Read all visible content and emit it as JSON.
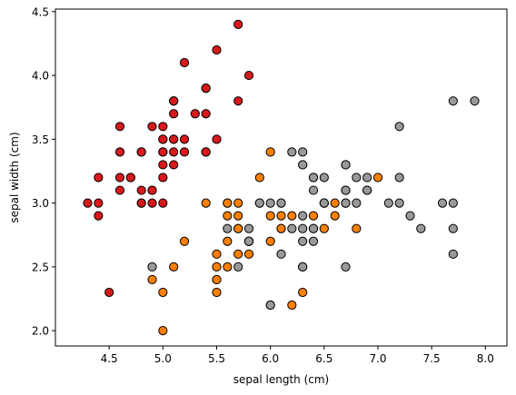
{
  "chart_data": {
    "type": "scatter",
    "title": "",
    "xlabel": "sepal length (cm)",
    "ylabel": "sepal width (cm)",
    "xlim": [
      4.0,
      8.2
    ],
    "ylim": [
      1.88,
      4.52
    ],
    "xticks": [
      "4.5",
      "5.0",
      "5.5",
      "6.0",
      "6.5",
      "7.0",
      "7.5",
      "8.0"
    ],
    "yticks": [
      "2.0",
      "2.5",
      "3.0",
      "3.5",
      "4.0",
      "4.5"
    ],
    "grid": false,
    "legend": "none",
    "series": [
      {
        "color": "#d7191c",
        "x": [
          5.1,
          4.9,
          4.7,
          4.6,
          5.0,
          5.4,
          4.6,
          5.0,
          4.4,
          4.9,
          5.4,
          4.8,
          4.8,
          4.3,
          5.8,
          5.7,
          5.4,
          5.1,
          5.7,
          5.1,
          5.4,
          5.1,
          4.6,
          5.1,
          4.8,
          5.0,
          5.0,
          5.2,
          5.2,
          4.7,
          4.8,
          5.4,
          5.2,
          5.5,
          4.9,
          5.0,
          5.5,
          4.9,
          4.4,
          5.1,
          5.0,
          4.5,
          4.4,
          5.0,
          5.1,
          4.8,
          5.1,
          4.6,
          5.3,
          5.0
        ],
        "y": [
          3.5,
          3.0,
          3.2,
          3.1,
          3.6,
          3.9,
          3.4,
          3.4,
          2.9,
          3.1,
          3.7,
          3.4,
          3.0,
          3.0,
          4.0,
          4.4,
          3.9,
          3.5,
          3.8,
          3.8,
          3.4,
          3.7,
          3.6,
          3.3,
          3.4,
          3.0,
          3.4,
          3.5,
          3.4,
          3.2,
          3.1,
          3.4,
          4.1,
          4.2,
          3.1,
          3.2,
          3.5,
          3.6,
          3.0,
          3.4,
          3.5,
          2.3,
          3.2,
          3.5,
          3.8,
          3.0,
          3.8,
          3.2,
          3.7,
          3.3
        ]
      },
      {
        "color": "#ff7f00",
        "x": [
          7.0,
          6.4,
          6.9,
          5.5,
          6.5,
          5.7,
          6.3,
          4.9,
          6.6,
          5.2,
          5.0,
          5.9,
          6.0,
          6.1,
          5.6,
          6.7,
          5.6,
          5.8,
          6.2,
          5.6,
          5.9,
          6.1,
          6.3,
          6.1,
          6.4,
          6.6,
          6.8,
          6.7,
          6.0,
          5.7,
          5.5,
          5.5,
          5.8,
          6.0,
          5.4,
          6.0,
          6.7,
          6.3,
          5.6,
          5.5,
          5.5,
          6.1,
          5.8,
          5.0,
          5.6,
          5.7,
          5.7,
          6.2,
          5.1,
          5.7
        ],
        "y": [
          3.2,
          3.2,
          3.1,
          2.3,
          2.8,
          2.8,
          3.3,
          2.4,
          2.9,
          2.7,
          2.0,
          3.0,
          2.2,
          2.9,
          2.9,
          3.1,
          3.0,
          2.7,
          2.2,
          2.5,
          3.2,
          2.8,
          2.5,
          2.8,
          2.9,
          3.0,
          2.8,
          3.0,
          2.9,
          2.6,
          2.4,
          2.4,
          2.7,
          2.7,
          3.0,
          3.4,
          3.1,
          2.3,
          3.0,
          2.5,
          2.6,
          3.0,
          2.6,
          2.3,
          2.7,
          3.0,
          2.9,
          2.9,
          2.5,
          2.8
        ]
      },
      {
        "color": "#999999",
        "x": [
          6.3,
          5.8,
          7.1,
          6.3,
          6.5,
          7.6,
          4.9,
          7.3,
          6.7,
          7.2,
          6.5,
          6.4,
          6.8,
          5.7,
          5.8,
          6.4,
          6.5,
          7.7,
          7.7,
          6.0,
          6.9,
          5.6,
          7.7,
          6.3,
          6.7,
          7.2,
          6.2,
          6.1,
          6.4,
          7.2,
          7.4,
          7.9,
          6.4,
          6.3,
          6.1,
          7.7,
          6.3,
          6.4,
          6.0,
          6.9,
          6.7,
          6.9,
          5.8,
          6.8,
          6.7,
          6.7,
          6.3,
          6.5,
          6.2,
          5.9
        ],
        "y": [
          3.3,
          2.7,
          3.0,
          2.9,
          3.0,
          3.0,
          2.5,
          2.9,
          2.5,
          3.6,
          3.2,
          2.7,
          3.0,
          2.5,
          2.8,
          3.2,
          3.0,
          3.8,
          2.6,
          2.2,
          3.2,
          2.8,
          2.8,
          2.7,
          3.3,
          3.2,
          2.8,
          3.0,
          2.8,
          3.0,
          2.8,
          3.8,
          2.8,
          2.8,
          2.6,
          3.0,
          3.4,
          3.1,
          3.0,
          3.1,
          3.1,
          3.1,
          2.7,
          3.2,
          3.3,
          3.0,
          2.5,
          3.0,
          3.4,
          3.0
        ]
      }
    ]
  }
}
